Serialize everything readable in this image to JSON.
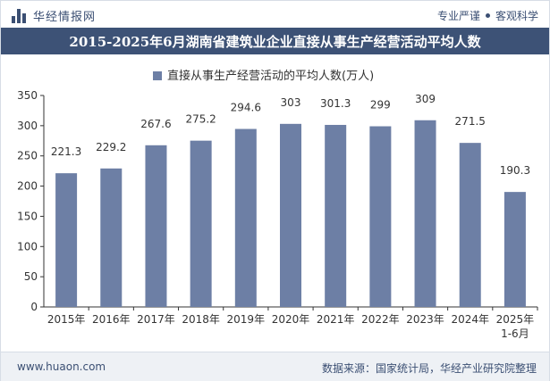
{
  "header": {
    "logo_text": "华经情报网",
    "slogan_left": "专业严谨",
    "slogan_right": "客观科学"
  },
  "footer": {
    "url": "www.huaon.com",
    "source": "数据来源：国家统计局，华经产业研究院整理"
  },
  "colors": {
    "bar": "#6d7fa5",
    "title_bg": "#3d5276",
    "axis": "#333333"
  },
  "chart_data": {
    "type": "bar",
    "title": "2015-2025年6月湖南省建筑业企业直接从事生产经营活动平均人数",
    "legend": "直接从事生产经营活动的平均人数(万人)",
    "legend_position": "top-center",
    "categories": [
      "2015年",
      "2016年",
      "2017年",
      "2018年",
      "2019年",
      "2020年",
      "2021年",
      "2022年",
      "2023年",
      "2024年",
      "2025年\n1-6月"
    ],
    "values": [
      221.3,
      229.2,
      267.6,
      275.2,
      294.6,
      303,
      301.3,
      299,
      309,
      271.5,
      190.3
    ],
    "value_labels": [
      "221.3",
      "229.2",
      "267.6",
      "275.2",
      "294.6",
      "303",
      "301.3",
      "299",
      "309",
      "271.5",
      "190.3"
    ],
    "ylim": [
      0,
      350
    ],
    "yticks": [
      0,
      50,
      100,
      150,
      200,
      250,
      300,
      350
    ],
    "grid": false
  }
}
